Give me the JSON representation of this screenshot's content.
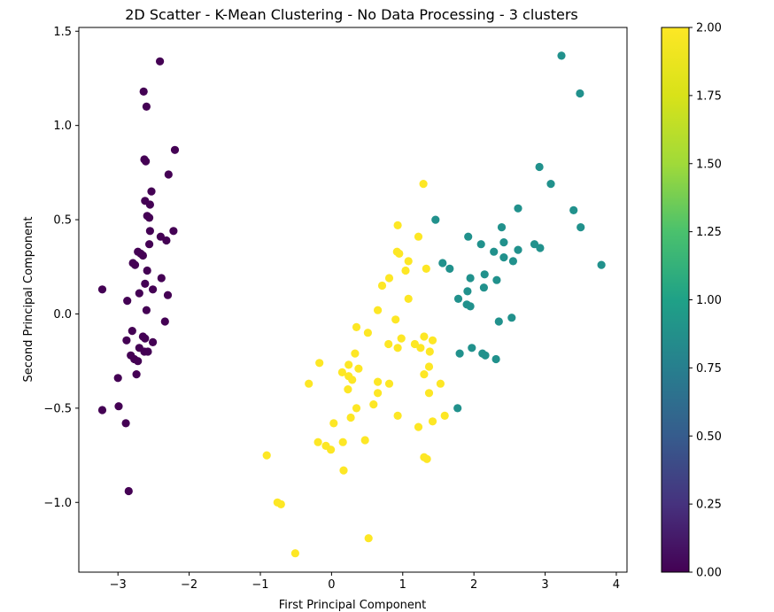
{
  "chart_data": {
    "type": "scatter",
    "title": "2D Scatter - K-Mean Clustering - No Data Processing - 3 clusters",
    "xlabel": "First Principal Component",
    "ylabel": "Second Principal Component",
    "xlim": [
      -3.55,
      4.15
    ],
    "ylim": [
      -1.37,
      1.52
    ],
    "xticks": [
      -3,
      -2,
      -1,
      0,
      1,
      2,
      3,
      4
    ],
    "yticks": [
      -1.0,
      -0.5,
      0.0,
      0.5,
      1.0,
      1.5
    ],
    "ytick_labels": [
      "−1.0",
      "−0.5",
      "0.0",
      "0.5",
      "1.0",
      "1.5"
    ],
    "xtick_labels": [
      "−3",
      "−2",
      "−1",
      "0",
      "1",
      "2",
      "3",
      "4"
    ],
    "grid": false,
    "colormap": "viridis",
    "colorbar": {
      "range": [
        0.0,
        2.0
      ],
      "ticks": [
        0.0,
        0.25,
        0.5,
        0.75,
        1.0,
        1.25,
        1.5,
        1.75,
        2.0
      ],
      "tick_labels": [
        "0.00",
        "0.25",
        "0.50",
        "0.75",
        "1.00",
        "1.25",
        "1.50",
        "1.75",
        "2.00"
      ]
    },
    "cluster_colors": {
      "0": "#440154",
      "1": "#21918c",
      "2": "#fde725"
    },
    "points": [
      [
        -2.41,
        1.34,
        0
      ],
      [
        -2.64,
        1.18,
        0
      ],
      [
        -2.6,
        1.1,
        0
      ],
      [
        -2.2,
        0.87,
        0
      ],
      [
        -2.63,
        0.82,
        0
      ],
      [
        -2.61,
        0.81,
        0
      ],
      [
        -2.29,
        0.74,
        0
      ],
      [
        -2.53,
        0.65,
        0
      ],
      [
        -2.62,
        0.6,
        0
      ],
      [
        -2.55,
        0.58,
        0
      ],
      [
        -2.59,
        0.52,
        0
      ],
      [
        -2.56,
        0.51,
        0
      ],
      [
        -2.22,
        0.44,
        0
      ],
      [
        -2.55,
        0.44,
        0
      ],
      [
        -2.4,
        0.41,
        0
      ],
      [
        -2.32,
        0.39,
        0
      ],
      [
        -2.56,
        0.37,
        0
      ],
      [
        -2.72,
        0.33,
        0
      ],
      [
        -2.68,
        0.32,
        0
      ],
      [
        -2.65,
        0.31,
        0
      ],
      [
        -2.79,
        0.27,
        0
      ],
      [
        -2.76,
        0.26,
        0
      ],
      [
        -2.59,
        0.23,
        0
      ],
      [
        -2.39,
        0.19,
        0
      ],
      [
        -2.62,
        0.16,
        0
      ],
      [
        -2.51,
        0.13,
        0
      ],
      [
        -2.3,
        0.1,
        0
      ],
      [
        -2.7,
        0.11,
        0
      ],
      [
        -3.22,
        0.13,
        0
      ],
      [
        -2.87,
        0.07,
        0
      ],
      [
        -2.6,
        0.02,
        0
      ],
      [
        -2.34,
        -0.04,
        0
      ],
      [
        -2.8,
        -0.09,
        0
      ],
      [
        -2.65,
        -0.12,
        0
      ],
      [
        -2.62,
        -0.13,
        0
      ],
      [
        -2.51,
        -0.15,
        0
      ],
      [
        -2.88,
        -0.14,
        0
      ],
      [
        -2.7,
        -0.18,
        0
      ],
      [
        -2.63,
        -0.2,
        0
      ],
      [
        -2.58,
        -0.2,
        0
      ],
      [
        -2.82,
        -0.22,
        0
      ],
      [
        -2.77,
        -0.24,
        0
      ],
      [
        -2.72,
        -0.25,
        0
      ],
      [
        -2.74,
        -0.32,
        0
      ],
      [
        -3.0,
        -0.34,
        0
      ],
      [
        -2.99,
        -0.49,
        0
      ],
      [
        -3.22,
        -0.51,
        0
      ],
      [
        -2.89,
        -0.58,
        0
      ],
      [
        -2.85,
        -0.94,
        0
      ],
      [
        3.23,
        1.37,
        1
      ],
      [
        3.49,
        1.17,
        1
      ],
      [
        2.92,
        0.78,
        1
      ],
      [
        3.08,
        0.69,
        1
      ],
      [
        2.62,
        0.56,
        1
      ],
      [
        3.4,
        0.55,
        1
      ],
      [
        1.46,
        0.5,
        1
      ],
      [
        2.39,
        0.46,
        1
      ],
      [
        3.5,
        0.46,
        1
      ],
      [
        1.92,
        0.41,
        1
      ],
      [
        2.1,
        0.37,
        1
      ],
      [
        2.42,
        0.38,
        1
      ],
      [
        2.85,
        0.37,
        1
      ],
      [
        2.93,
        0.35,
        1
      ],
      [
        2.28,
        0.33,
        1
      ],
      [
        2.62,
        0.34,
        1
      ],
      [
        2.42,
        0.3,
        1
      ],
      [
        2.55,
        0.28,
        1
      ],
      [
        1.56,
        0.27,
        1
      ],
      [
        1.66,
        0.24,
        1
      ],
      [
        3.79,
        0.26,
        1
      ],
      [
        2.15,
        0.21,
        1
      ],
      [
        1.95,
        0.19,
        1
      ],
      [
        2.32,
        0.18,
        1
      ],
      [
        2.14,
        0.14,
        1
      ],
      [
        1.91,
        0.12,
        1
      ],
      [
        1.78,
        0.08,
        1
      ],
      [
        1.9,
        0.05,
        1
      ],
      [
        1.95,
        0.04,
        1
      ],
      [
        2.53,
        -0.02,
        1
      ],
      [
        2.35,
        -0.04,
        1
      ],
      [
        1.97,
        -0.18,
        1
      ],
      [
        2.12,
        -0.21,
        1
      ],
      [
        1.8,
        -0.21,
        1
      ],
      [
        2.16,
        -0.22,
        1
      ],
      [
        2.31,
        -0.24,
        1
      ],
      [
        1.77,
        -0.5,
        1
      ],
      [
        1.29,
        0.69,
        2
      ],
      [
        0.93,
        0.47,
        2
      ],
      [
        1.22,
        0.41,
        2
      ],
      [
        0.92,
        0.33,
        2
      ],
      [
        0.95,
        0.32,
        2
      ],
      [
        1.08,
        0.28,
        2
      ],
      [
        1.33,
        0.24,
        2
      ],
      [
        1.04,
        0.23,
        2
      ],
      [
        0.81,
        0.19,
        2
      ],
      [
        0.71,
        0.15,
        2
      ],
      [
        1.08,
        0.08,
        2
      ],
      [
        0.65,
        0.02,
        2
      ],
      [
        0.9,
        -0.03,
        2
      ],
      [
        0.35,
        -0.07,
        2
      ],
      [
        0.51,
        -0.1,
        2
      ],
      [
        1.3,
        -0.12,
        2
      ],
      [
        1.42,
        -0.14,
        2
      ],
      [
        0.98,
        -0.13,
        2
      ],
      [
        1.17,
        -0.16,
        2
      ],
      [
        0.8,
        -0.16,
        2
      ],
      [
        1.25,
        -0.18,
        2
      ],
      [
        0.93,
        -0.18,
        2
      ],
      [
        1.38,
        -0.2,
        2
      ],
      [
        0.33,
        -0.21,
        2
      ],
      [
        -0.17,
        -0.26,
        2
      ],
      [
        0.24,
        -0.27,
        2
      ],
      [
        0.38,
        -0.29,
        2
      ],
      [
        1.37,
        -0.28,
        2
      ],
      [
        0.15,
        -0.31,
        2
      ],
      [
        0.24,
        -0.33,
        2
      ],
      [
        1.3,
        -0.32,
        2
      ],
      [
        0.29,
        -0.35,
        2
      ],
      [
        0.65,
        -0.36,
        2
      ],
      [
        -0.32,
        -0.37,
        2
      ],
      [
        0.81,
        -0.37,
        2
      ],
      [
        1.53,
        -0.37,
        2
      ],
      [
        0.23,
        -0.4,
        2
      ],
      [
        0.65,
        -0.42,
        2
      ],
      [
        1.37,
        -0.42,
        2
      ],
      [
        0.59,
        -0.48,
        2
      ],
      [
        0.35,
        -0.5,
        2
      ],
      [
        0.93,
        -0.54,
        2
      ],
      [
        0.27,
        -0.55,
        2
      ],
      [
        1.59,
        -0.54,
        2
      ],
      [
        1.42,
        -0.57,
        2
      ],
      [
        0.03,
        -0.58,
        2
      ],
      [
        1.22,
        -0.6,
        2
      ],
      [
        -0.19,
        -0.68,
        2
      ],
      [
        0.47,
        -0.67,
        2
      ],
      [
        0.16,
        -0.68,
        2
      ],
      [
        -0.08,
        -0.7,
        2
      ],
      [
        -0.01,
        -0.72,
        2
      ],
      [
        1.3,
        -0.76,
        2
      ],
      [
        1.34,
        -0.77,
        2
      ],
      [
        -0.91,
        -0.75,
        2
      ],
      [
        0.17,
        -0.83,
        2
      ],
      [
        -0.76,
        -1.0,
        2
      ],
      [
        -0.71,
        -1.01,
        2
      ],
      [
        0.52,
        -1.19,
        2
      ],
      [
        -0.51,
        -1.27,
        2
      ]
    ]
  }
}
